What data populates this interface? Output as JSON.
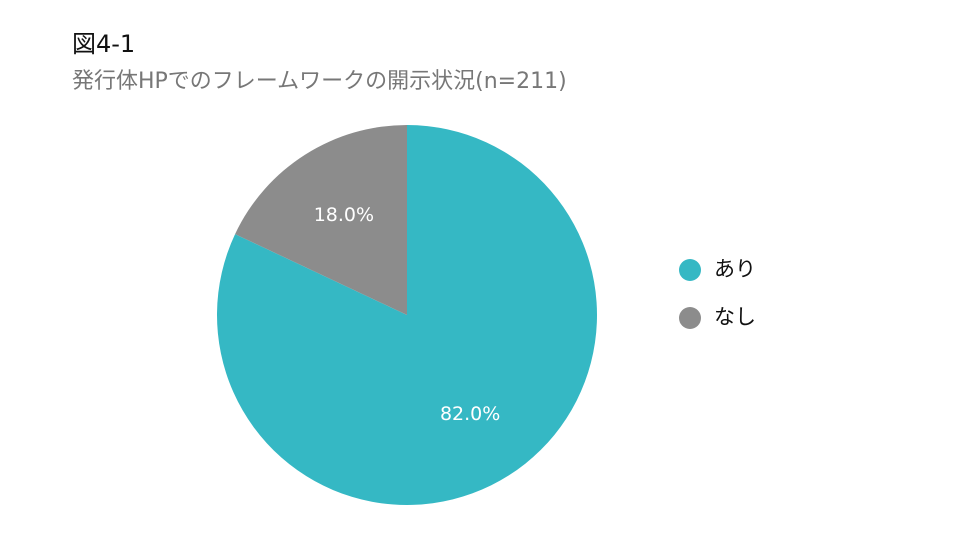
{
  "chart_data": {
    "type": "pie",
    "title": "図4-1",
    "subtitle": "発行体HPでのフレームワークの開示状況(n=211)",
    "categories": [
      "あり",
      "なし"
    ],
    "values": [
      82.0,
      18.0
    ],
    "value_labels": [
      "82.0%",
      "18.0%"
    ],
    "colors": [
      "#35b8c4",
      "#8c8c8c"
    ],
    "legend": "right"
  }
}
